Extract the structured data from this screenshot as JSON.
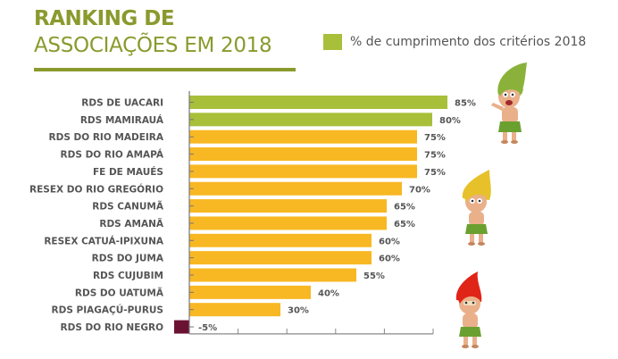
{
  "chart_data": {
    "type": "bar",
    "orientation": "horizontal",
    "title": "RANKING DE",
    "subtitle": "ASSOCIAÇÕES EM 2018",
    "xlabel": "",
    "ylabel": "",
    "xlim": [
      -5,
      100
    ],
    "grid": false,
    "legend": {
      "position": "top-right",
      "entries": [
        {
          "label": "% de cumprimento dos critérios 2018",
          "color": "#a8bf3a"
        }
      ]
    },
    "categories": [
      "RDS DE UACARI",
      "RDS MAMIRAUÁ",
      "RDS DO RIO MADEIRA",
      "RDS DO RIO AMAPÁ",
      "FE DE MAUÉS",
      "RESEX DO RIO GREGÓRIO",
      "RDS CANUMÃ",
      "RDS AMANÃ",
      "RESEX CATUÁ-IPIXUNA",
      "RDS DO JUMA",
      "RDS CUJUBIM",
      "RDS DO UATUMÃ",
      "RDS PIAGAÇÚ-PURUS",
      "RDS DO RIO NEGRO"
    ],
    "values": [
      85,
      80,
      75,
      75,
      75,
      70,
      65,
      65,
      60,
      60,
      55,
      40,
      30,
      -5
    ],
    "value_labels": [
      "85%",
      "80%",
      "75%",
      "75%",
      "75%",
      "70%",
      "65%",
      "65%",
      "60%",
      "60%",
      "55%",
      "40%",
      "30%",
      "-5%"
    ],
    "bar_colors": [
      "#a8bf3a",
      "#a8bf3a",
      "#f8b823",
      "#f8b823",
      "#f8b823",
      "#f8b823",
      "#f8b823",
      "#f8b823",
      "#f8b823",
      "#f8b823",
      "#f8b823",
      "#f8b823",
      "#f8b823",
      "#6b1232"
    ]
  },
  "header": {
    "title_line1": "RANKING DE",
    "title_line2": "ASSOCIAÇÕES EM 2018"
  },
  "legend": {
    "label": "% de cumprimento dos critérios 2018",
    "color": "#a8bf3a"
  },
  "colors": {
    "title": "#8a9a2d",
    "top_tier": "#a8bf3a",
    "mid_tier": "#f8b823",
    "low_tier": "#6b1232",
    "text": "#555555"
  },
  "illustrations": [
    "green-haired-character-icon",
    "yellow-haired-character-icon",
    "red-haired-character-icon"
  ]
}
